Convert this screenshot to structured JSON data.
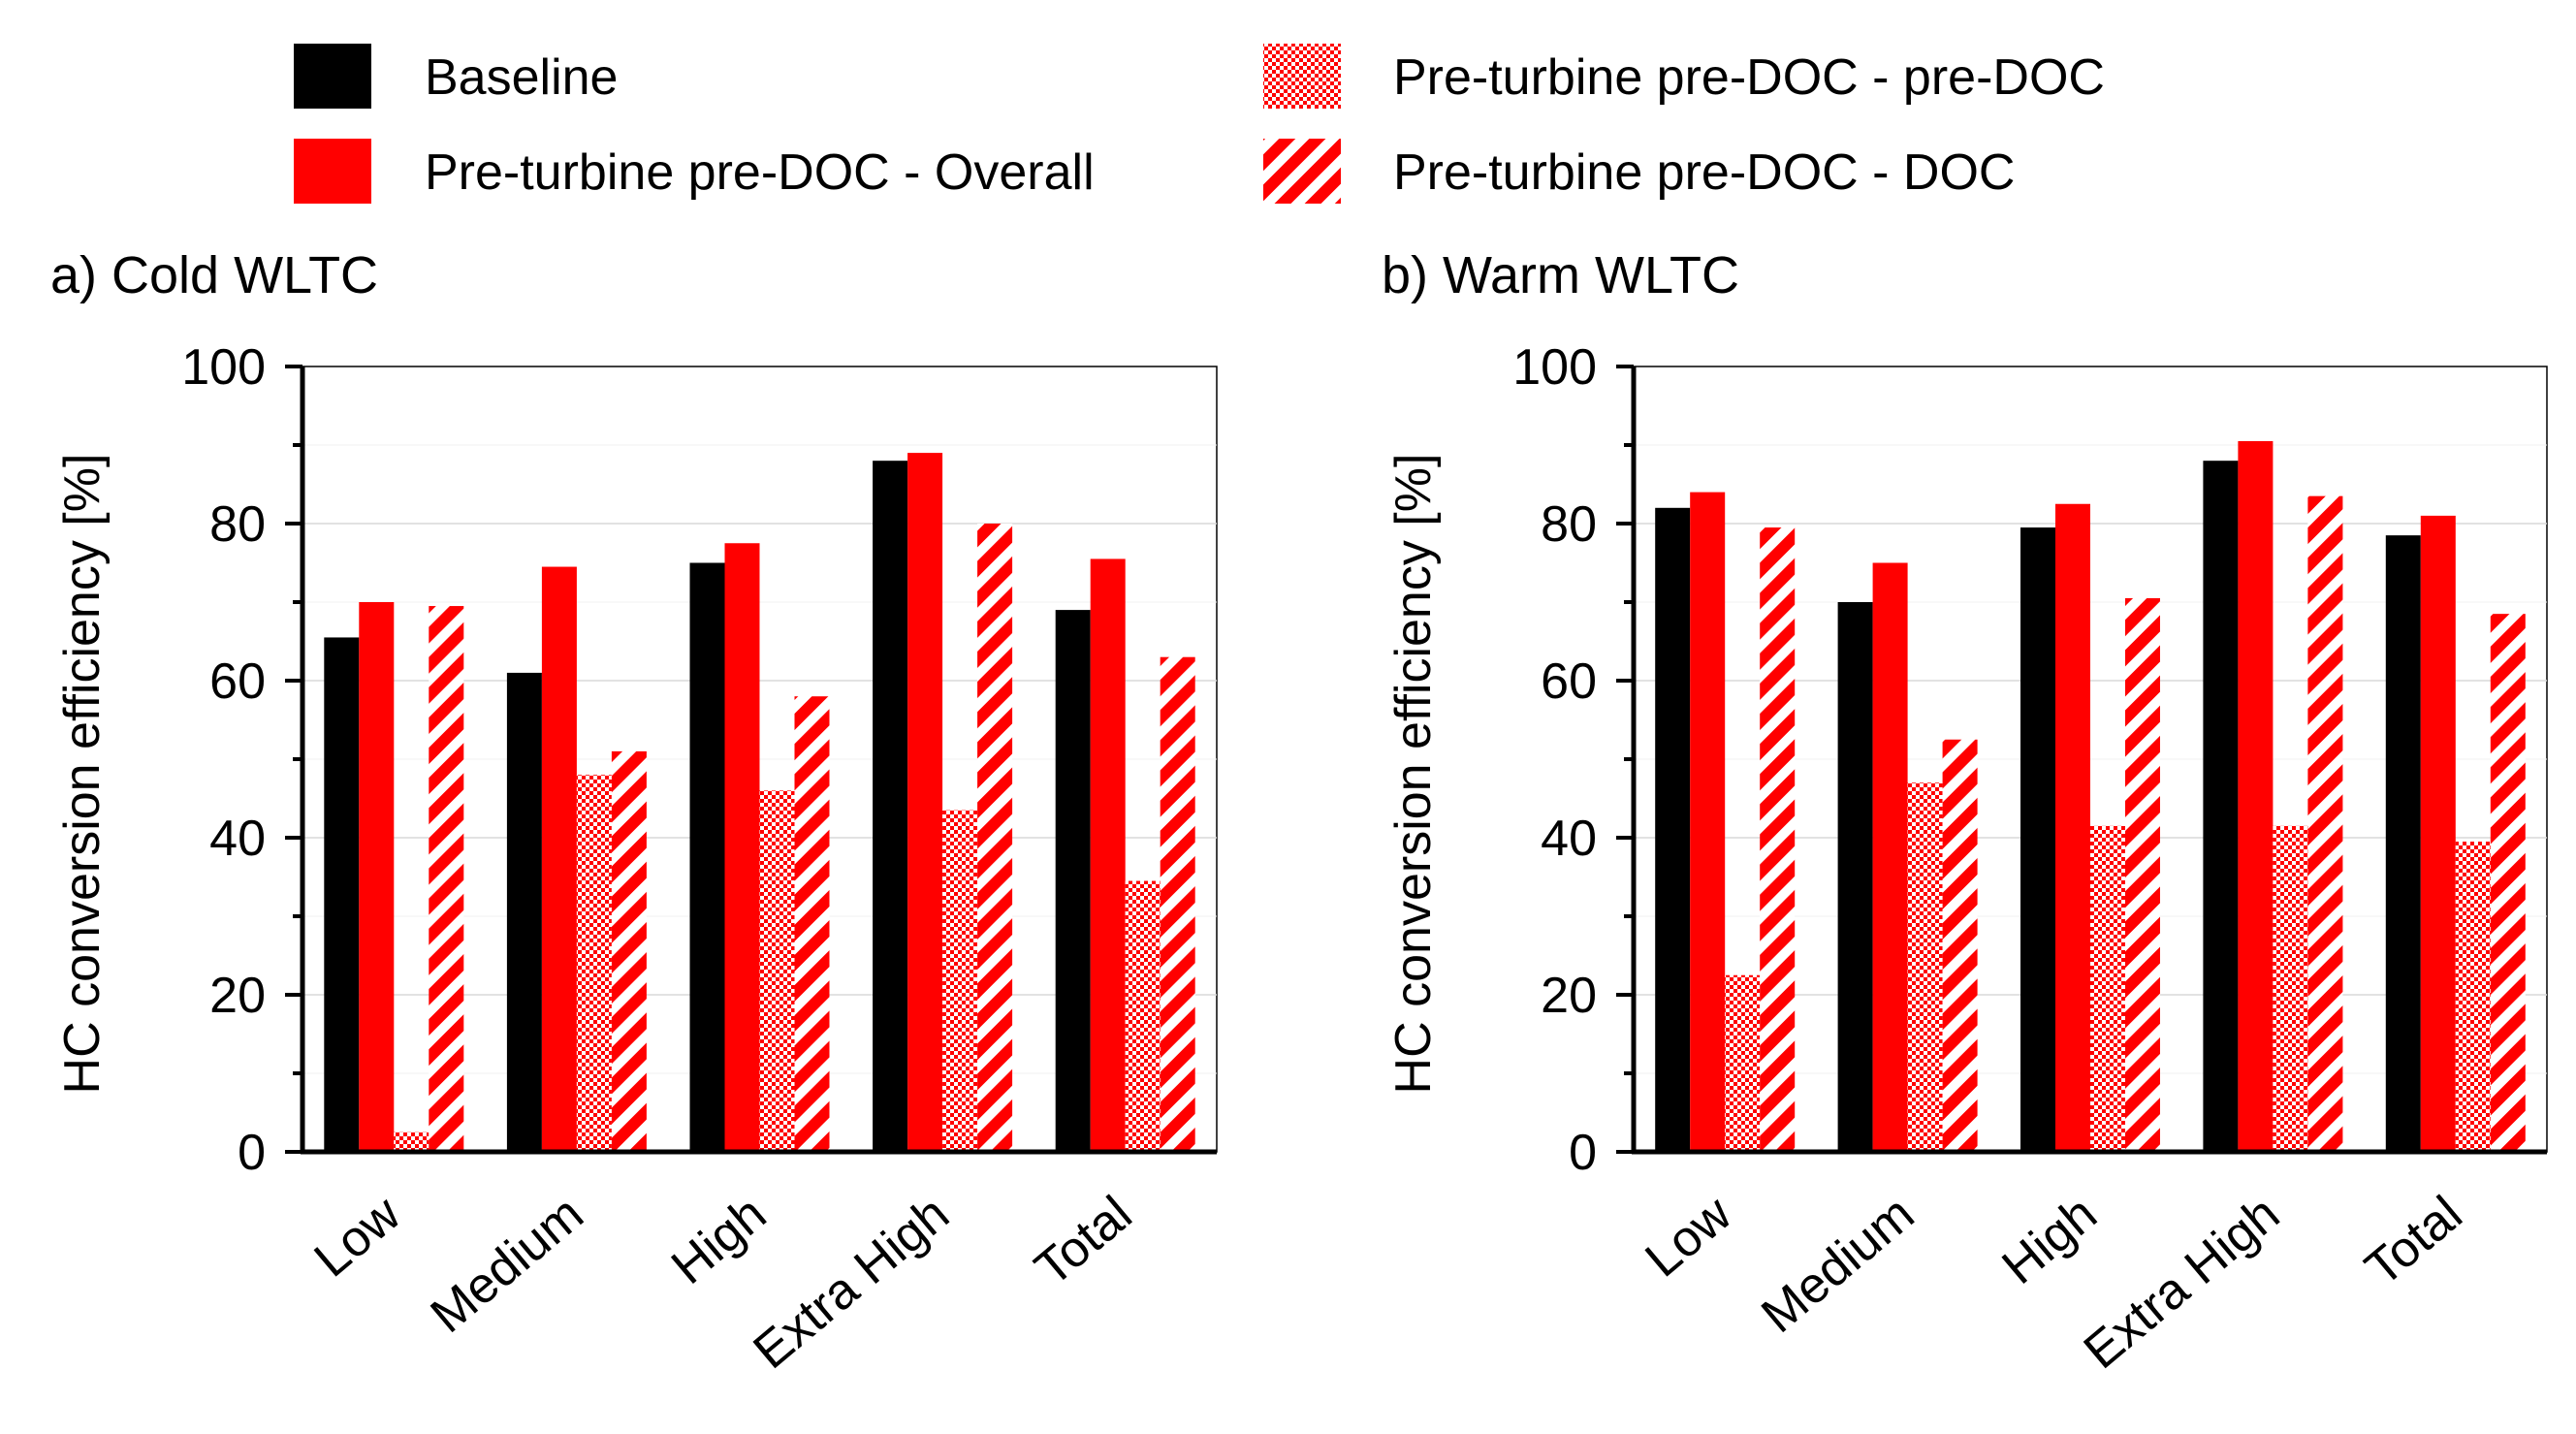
{
  "legend": [
    {
      "label": "Baseline",
      "color": "#000000",
      "pattern": "solid"
    },
    {
      "label": "Pre-turbine pre-DOC - Overall",
      "color": "#ff0000",
      "pattern": "solid"
    },
    {
      "label": "Pre-turbine pre-DOC - pre-DOC",
      "color": "#ff0000",
      "pattern": "dots"
    },
    {
      "label": "Pre-turbine pre-DOC - DOC",
      "color": "#ff0000",
      "pattern": "hatch"
    }
  ],
  "chart_data": [
    {
      "type": "bar",
      "title": "a) Cold WLTC",
      "ylabel": "HC conversion efficiency [%]",
      "ylim": [
        0,
        100
      ],
      "yticks": [
        "0",
        "20",
        "40",
        "60",
        "80",
        "100"
      ],
      "categories": [
        "Low",
        "Medium",
        "High",
        "Extra High",
        "Total"
      ],
      "series": [
        {
          "name": "Baseline",
          "values": [
            65.5,
            61,
            75,
            88,
            69
          ]
        },
        {
          "name": "Pre-turbine pre-DOC - Overall",
          "values": [
            70,
            74.5,
            77.5,
            89,
            75.5
          ]
        },
        {
          "name": "Pre-turbine pre-DOC - pre-DOC",
          "values": [
            2.5,
            48,
            46,
            43.5,
            34.5
          ]
        },
        {
          "name": "Pre-turbine pre-DOC - DOC",
          "values": [
            69.5,
            51,
            58,
            80,
            63
          ]
        }
      ],
      "grid": true
    },
    {
      "type": "bar",
      "title": "b) Warm WLTC",
      "ylabel": "HC conversion efficiency [%]",
      "ylim": [
        0,
        100
      ],
      "yticks": [
        "0",
        "20",
        "40",
        "60",
        "80",
        "100"
      ],
      "categories": [
        "Low",
        "Medium",
        "High",
        "Extra High",
        "Total"
      ],
      "series": [
        {
          "name": "Baseline",
          "values": [
            82,
            70,
            79.5,
            88,
            78.5
          ]
        },
        {
          "name": "Pre-turbine pre-DOC - Overall",
          "values": [
            84,
            75,
            82.5,
            90.5,
            81
          ]
        },
        {
          "name": "Pre-turbine pre-DOC - pre-DOC",
          "values": [
            22.5,
            47,
            41.5,
            41.5,
            39.5
          ]
        },
        {
          "name": "Pre-turbine pre-DOC - DOC",
          "values": [
            79.5,
            52.5,
            70.5,
            83.5,
            68.5
          ]
        }
      ],
      "grid": true
    }
  ]
}
